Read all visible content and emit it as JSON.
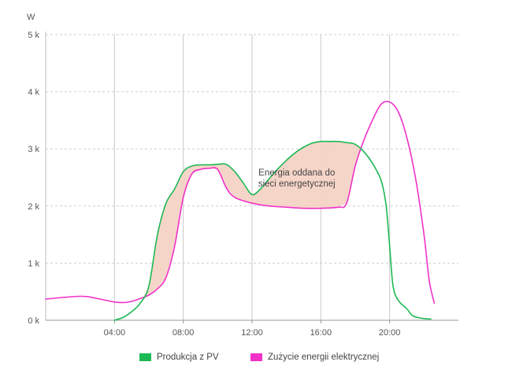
{
  "chart_data": {
    "type": "area",
    "ylabel": "W",
    "ylim": [
      0,
      5000
    ],
    "xlim": [
      0,
      24
    ],
    "y_ticks": [
      {
        "value": 0,
        "label": "0 k"
      },
      {
        "value": 1000,
        "label": "1 k"
      },
      {
        "value": 2000,
        "label": "2 k"
      },
      {
        "value": 3000,
        "label": "3 k"
      },
      {
        "value": 4000,
        "label": "4 k"
      },
      {
        "value": 5000,
        "label": "5 k"
      }
    ],
    "x_ticks": [
      {
        "value": 4,
        "label": "04:00"
      },
      {
        "value": 8,
        "label": "08:00"
      },
      {
        "value": 12,
        "label": "12:00"
      },
      {
        "value": 16,
        "label": "16:00"
      },
      {
        "value": 20,
        "label": "20:00"
      }
    ],
    "grid": {
      "vertical": true,
      "horizontal": true
    },
    "legend_position": "bottom",
    "annotation": {
      "lines": [
        "Energia oddana do",
        "sieci energetycznej"
      ],
      "x": 14.6,
      "y": 2400
    },
    "series": [
      {
        "name": "Produkcja z PV",
        "color": "#1db954",
        "x": [
          4.0,
          4.5,
          5.0,
          5.5,
          6.0,
          6.5,
          7.0,
          7.5,
          8.0,
          8.5,
          9.0,
          9.5,
          10.0,
          10.5,
          11.0,
          11.5,
          12.0,
          12.5,
          13.0,
          13.5,
          14.0,
          14.5,
          15.0,
          15.5,
          16.0,
          16.5,
          17.0,
          17.5,
          18.0,
          18.5,
          19.0,
          19.5,
          19.8,
          20.0,
          20.2,
          20.5,
          21.0,
          21.3,
          21.6,
          22.0,
          22.4
        ],
        "y": [
          0,
          50,
          150,
          300,
          600,
          1500,
          2050,
          2300,
          2600,
          2700,
          2720,
          2720,
          2730,
          2730,
          2600,
          2400,
          2200,
          2300,
          2480,
          2650,
          2800,
          2930,
          3030,
          3100,
          3130,
          3130,
          3130,
          3110,
          3080,
          2950,
          2750,
          2450,
          2000,
          1300,
          600,
          350,
          200,
          90,
          50,
          30,
          20
        ]
      },
      {
        "name": "Zużycie energii elektrycznej",
        "color": "#f032c8",
        "x": [
          0.0,
          1.0,
          2.0,
          2.5,
          3.0,
          3.5,
          4.0,
          4.5,
          5.0,
          5.5,
          6.0,
          6.5,
          7.0,
          7.5,
          8.0,
          8.5,
          9.0,
          9.5,
          10.0,
          10.5,
          11.0,
          12.0,
          13.0,
          14.0,
          15.0,
          16.0,
          17.0,
          17.5,
          18.0,
          18.5,
          19.0,
          19.5,
          20.0,
          20.5,
          21.0,
          21.5,
          22.0,
          22.3,
          22.6
        ],
        "y": [
          370,
          400,
          420,
          410,
          380,
          350,
          320,
          310,
          330,
          380,
          440,
          550,
          750,
          1300,
          2150,
          2560,
          2640,
          2660,
          2640,
          2320,
          2150,
          2050,
          2000,
          1980,
          1960,
          1960,
          1980,
          2050,
          2700,
          3150,
          3500,
          3780,
          3820,
          3650,
          3200,
          2500,
          1500,
          700,
          300
        ]
      }
    ]
  }
}
